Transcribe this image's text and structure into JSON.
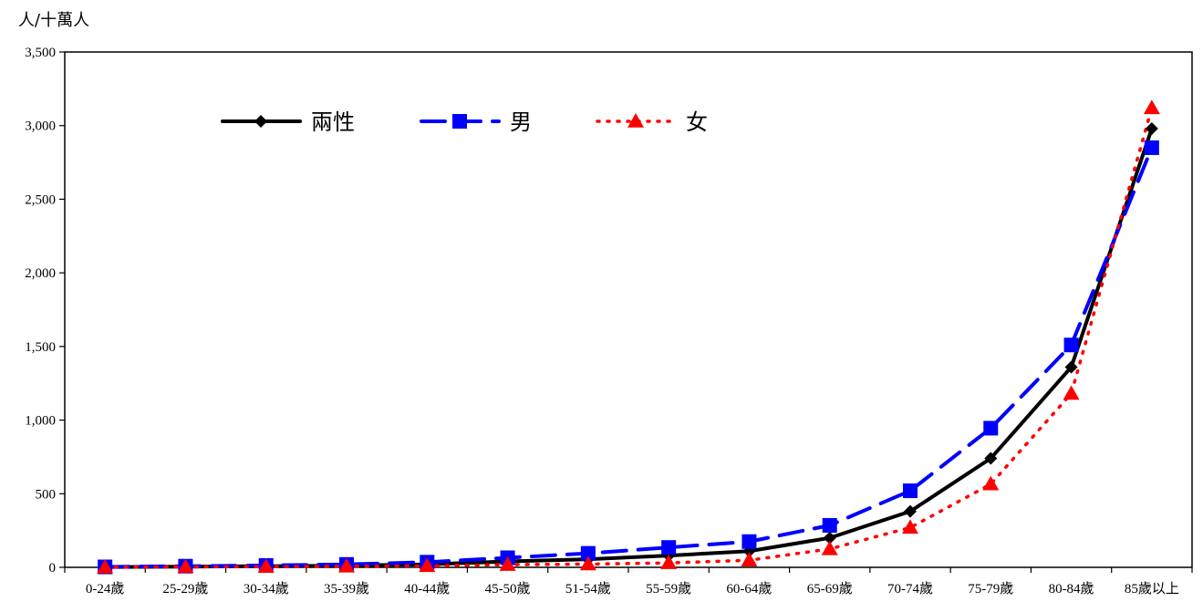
{
  "chart_data": {
    "type": "line",
    "ylabel": "人/十萬人",
    "ylim": [
      0,
      3500
    ],
    "yticks": [
      0,
      500,
      1000,
      1500,
      2000,
      2500,
      3000,
      3500
    ],
    "ytick_labels": [
      "0",
      "500",
      "1,000",
      "1,500",
      "2,000",
      "2,500",
      "3,000",
      "3,500"
    ],
    "categories": [
      "0-24歲",
      "25-29歲",
      "30-34歲",
      "35-39歲",
      "40-44歲",
      "45-50歲",
      "51-54歲",
      "55-59歲",
      "60-64歲",
      "65-69歲",
      "70-74歲",
      "75-79歲",
      "80-84歲",
      "85歲以上"
    ],
    "grid": false,
    "legend": "top-left",
    "series": [
      {
        "name": "兩性",
        "color": "#000000",
        "marker": "diamond",
        "line": "solid",
        "values": [
          2,
          5,
          8,
          12,
          20,
          40,
          55,
          80,
          110,
          200,
          380,
          740,
          1360,
          2980
        ]
      },
      {
        "name": "男",
        "color": "#0000ff",
        "marker": "square",
        "line": "dashed",
        "values": [
          3,
          8,
          13,
          20,
          35,
          65,
          95,
          135,
          175,
          285,
          520,
          945,
          1510,
          2850
        ]
      },
      {
        "name": "女",
        "color": "#ff0000",
        "marker": "triangle",
        "line": "dotted",
        "values": [
          1,
          3,
          5,
          7,
          10,
          18,
          22,
          30,
          48,
          125,
          270,
          565,
          1180,
          3120
        ]
      }
    ]
  }
}
